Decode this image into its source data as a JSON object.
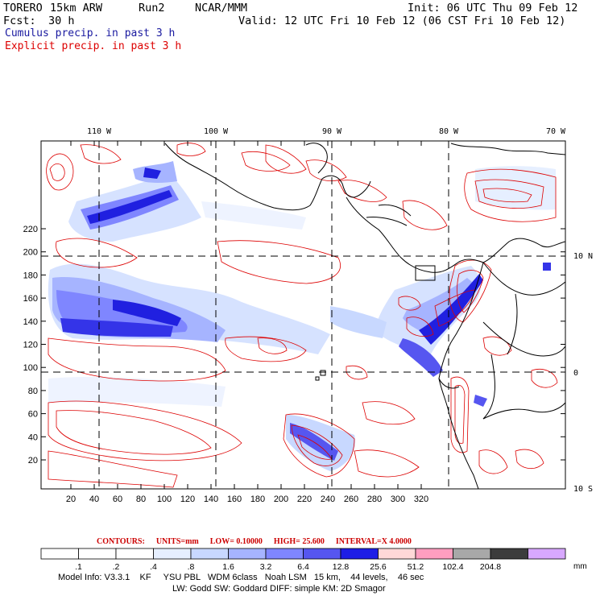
{
  "header": {
    "model": "TORERO",
    "grid": "15km ARW",
    "run": "Run2",
    "org": "NCAR/MMM",
    "init": "Init: 06 UTC Thu 09 Feb 12",
    "fcst_label": "Fcst:",
    "fcst_value": "30 h",
    "valid": "Valid: 12 UTC Fri 10 Feb 12 (06 CST Fri 10 Feb 12)",
    "field1": "Cumulus precip. in past 3 h",
    "field2": "Explicit precip. in past 3 h"
  },
  "colors": {
    "field1": "#1a1aa0",
    "field2": "#dd0000",
    "contour": "#dd0000",
    "coast": "#000000"
  },
  "map": {
    "x_ticks": [
      "20",
      "40",
      "60",
      "80",
      "100",
      "120",
      "140",
      "160",
      "180",
      "200",
      "220",
      "240",
      "260",
      "280",
      "300",
      "320"
    ],
    "y_ticks": [
      "20",
      "40",
      "60",
      "80",
      "100",
      "120",
      "140",
      "160",
      "180",
      "200",
      "220"
    ],
    "lon_labels": [
      "110 W",
      "100 W",
      "90 W",
      "80 W",
      "70 W"
    ],
    "lat_labels": [
      "10 N",
      "0",
      "10 S"
    ]
  },
  "colorbar": {
    "contours_label": "CONTOURS:",
    "units": "UNITS=mm",
    "low": "LOW= 0.10000",
    "high": "HIGH= 25.600",
    "interval": "INTERVAL=X 4.0000",
    "levels": [
      ".1",
      ".2",
      ".4",
      ".8",
      "1.6",
      "3.2",
      "6.4",
      "12.8",
      "25.6",
      "51.2",
      "102.4",
      "204.8"
    ],
    "unit_suffix": "mm",
    "colors": [
      "#ffffff",
      "#ffffff",
      "#ffffff",
      "#e6efff",
      "#c8d8ff",
      "#a6b4ff",
      "#7f86ff",
      "#5656f0",
      "#1e1ee6",
      "#ffd8d8",
      "#ff9ec0",
      "#a8a8a8",
      "#3c3c3c",
      "#d8a8ff"
    ]
  },
  "footer": {
    "line1": "Model Info: V3.3.1    KF     YSU PBL   WDM 6class   Noah LSM   15 km,    44 levels,    46 sec",
    "line2": "LW: Godd SW: Goddard DIFF: simple KM: 2D Smagor"
  }
}
